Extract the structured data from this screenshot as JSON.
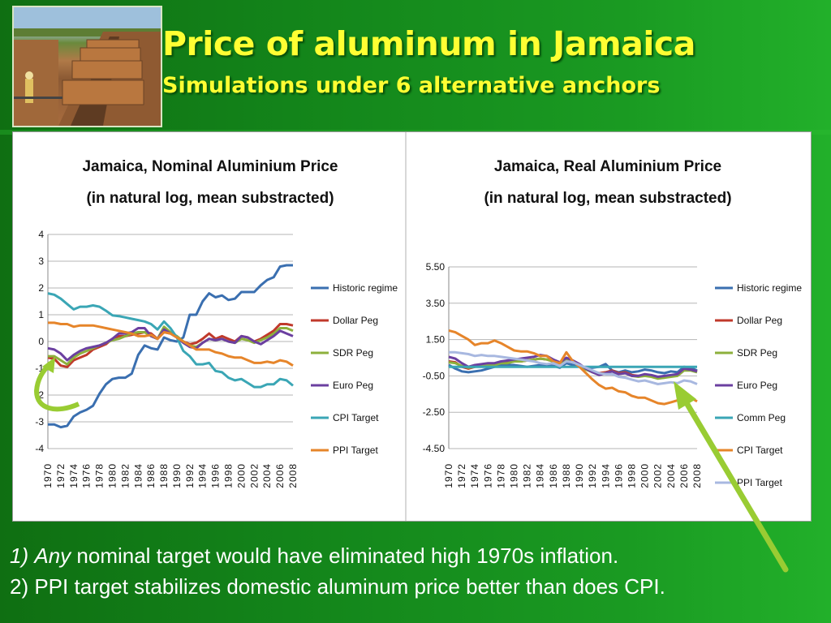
{
  "slide": {
    "title": "Price of aluminum in Jamaica",
    "subtitle": "Simulations under 6 alternative anchors",
    "note1_number": "1)",
    "note1_emph": "Any",
    "note1_text": "nominal target would have eliminated high 1970s inflation.",
    "note2_text": "2) PPI target stabilizes domestic aluminum price better than does CPI.",
    "title_color": "#ffff33",
    "arrow_color": "#99cc33"
  },
  "chart_data": [
    {
      "type": "line",
      "title_line1": "Jamaica, Nominal Aluminium Price",
      "title_line2": "(in natural log, mean substracted)",
      "ylim": [
        -4,
        4
      ],
      "yticks": [
        4,
        3,
        2,
        1,
        0,
        -1,
        -2,
        -3,
        -4
      ],
      "ytick_labels": [
        "4",
        "3",
        "2",
        "1",
        "0",
        "-1",
        "-2",
        "-3",
        "-4"
      ],
      "x": [
        1970,
        1971,
        1972,
        1973,
        1974,
        1975,
        1976,
        1977,
        1978,
        1979,
        1980,
        1981,
        1982,
        1983,
        1984,
        1985,
        1986,
        1987,
        1988,
        1989,
        1990,
        1991,
        1992,
        1993,
        1994,
        1995,
        1996,
        1997,
        1998,
        1999,
        2000,
        2001,
        2002,
        2003,
        2004,
        2005,
        2006,
        2007,
        2008
      ],
      "xtick_labels": [
        "1970",
        "1972",
        "1974",
        "1976",
        "1978",
        "1980",
        "1982",
        "1984",
        "1986",
        "1988",
        "1990",
        "1992",
        "1994",
        "1996",
        "1998",
        "2000",
        "2002",
        "2004",
        "2006",
        "2008"
      ],
      "legend_position": "right",
      "series": [
        {
          "name": "Historic regime",
          "color": "#3a6fb0",
          "values": [
            -3.1,
            -3.1,
            -3.2,
            -3.15,
            -2.8,
            -2.65,
            -2.55,
            -2.4,
            -1.95,
            -1.6,
            -1.4,
            -1.35,
            -1.35,
            -1.2,
            -0.5,
            -0.15,
            -0.25,
            -0.3,
            0.15,
            0.05,
            0.0,
            0.15,
            1.0,
            1.0,
            1.5,
            1.8,
            1.65,
            1.72,
            1.55,
            1.6,
            1.85,
            1.85,
            1.85,
            2.1,
            2.3,
            2.4,
            2.8,
            2.85,
            2.85
          ]
        },
        {
          "name": "Dollar Peg",
          "color": "#c0392b",
          "values": [
            -0.6,
            -0.65,
            -0.9,
            -0.95,
            -0.7,
            -0.6,
            -0.5,
            -0.3,
            -0.2,
            -0.1,
            0.1,
            0.2,
            0.2,
            0.25,
            0.3,
            0.35,
            0.3,
            0.1,
            0.35,
            0.3,
            0.2,
            0.0,
            -0.1,
            -0.05,
            0.1,
            0.3,
            0.1,
            0.2,
            0.1,
            0.0,
            0.2,
            0.15,
            0.0,
            0.1,
            0.25,
            0.4,
            0.65,
            0.65,
            0.6
          ]
        },
        {
          "name": "SDR Peg",
          "color": "#8db03c",
          "values": [
            -0.55,
            -0.55,
            -0.7,
            -0.85,
            -0.6,
            -0.45,
            -0.35,
            -0.25,
            -0.15,
            -0.05,
            0.05,
            0.1,
            0.2,
            0.3,
            0.35,
            0.35,
            0.2,
            0.1,
            0.55,
            0.35,
            0.2,
            0.0,
            -0.15,
            -0.2,
            -0.05,
            0.1,
            0.05,
            0.1,
            0.0,
            -0.05,
            0.1,
            0.05,
            -0.05,
            0.05,
            0.15,
            0.3,
            0.5,
            0.5,
            0.4
          ]
        },
        {
          "name": "Euro Peg",
          "color": "#6b3fa0",
          "values": [
            -0.25,
            -0.3,
            -0.45,
            -0.7,
            -0.5,
            -0.35,
            -0.25,
            -0.2,
            -0.15,
            -0.05,
            0.1,
            0.3,
            0.3,
            0.35,
            0.5,
            0.5,
            0.2,
            0.1,
            0.45,
            0.3,
            0.15,
            -0.05,
            -0.2,
            -0.25,
            -0.05,
            0.1,
            0.05,
            0.1,
            0.0,
            -0.05,
            0.2,
            0.15,
            0.0,
            -0.1,
            0.05,
            0.2,
            0.4,
            0.3,
            0.2
          ]
        },
        {
          "name": "CPI Target",
          "color": "#3aa6b5",
          "values": [
            1.8,
            1.75,
            1.6,
            1.4,
            1.2,
            1.3,
            1.3,
            1.35,
            1.3,
            1.15,
            0.98,
            0.95,
            0.9,
            0.85,
            0.8,
            0.75,
            0.65,
            0.45,
            0.75,
            0.5,
            0.15,
            -0.35,
            -0.55,
            -0.85,
            -0.85,
            -0.8,
            -1.1,
            -1.15,
            -1.35,
            -1.45,
            -1.4,
            -1.55,
            -1.7,
            -1.7,
            -1.6,
            -1.6,
            -1.4,
            -1.45,
            -1.65
          ]
        },
        {
          "name": "PPI Target",
          "color": "#e6852a",
          "values": [
            0.7,
            0.7,
            0.65,
            0.65,
            0.55,
            0.6,
            0.6,
            0.6,
            0.55,
            0.5,
            0.45,
            0.4,
            0.35,
            0.3,
            0.2,
            0.2,
            0.25,
            0.1,
            0.35,
            0.3,
            0.15,
            0.0,
            -0.15,
            -0.3,
            -0.3,
            -0.3,
            -0.4,
            -0.45,
            -0.55,
            -0.6,
            -0.6,
            -0.7,
            -0.8,
            -0.8,
            -0.75,
            -0.8,
            -0.7,
            -0.75,
            -0.9
          ]
        }
      ]
    },
    {
      "type": "line",
      "title_line1": "Jamaica, Real Aluminium Price",
      "title_line2": "(in natural log, mean substracted)",
      "ylim": [
        -4.5,
        5.5
      ],
      "yticks": [
        5.5,
        3.5,
        1.5,
        -0.5,
        -2.5,
        -4.5
      ],
      "ytick_labels": [
        "5.50",
        "3.50",
        "1.50",
        "-0.50",
        "-2.50",
        "-4.50"
      ],
      "x": [
        1970,
        1971,
        1972,
        1973,
        1974,
        1975,
        1976,
        1977,
        1978,
        1979,
        1980,
        1981,
        1982,
        1983,
        1984,
        1985,
        1986,
        1987,
        1988,
        1989,
        1990,
        1991,
        1992,
        1993,
        1994,
        1995,
        1996,
        1997,
        1998,
        1999,
        2000,
        2001,
        2002,
        2003,
        2004,
        2005,
        2006,
        2007,
        2008
      ],
      "xtick_labels": [
        "1970",
        "1972",
        "1974",
        "1976",
        "1978",
        "1980",
        "1982",
        "1984",
        "1986",
        "1988",
        "1990",
        "1992",
        "1994",
        "1996",
        "1998",
        "2000",
        "2002",
        "2004",
        "2006",
        "2008"
      ],
      "legend_position": "right",
      "series": [
        {
          "name": "Historic regime",
          "color": "#3a6fb0",
          "values": [
            0.1,
            -0.1,
            -0.25,
            -0.3,
            -0.25,
            -0.2,
            -0.1,
            0.0,
            0.1,
            0.1,
            0.1,
            0.05,
            0.0,
            0.05,
            0.1,
            0.1,
            0.05,
            -0.05,
            0.2,
            0.1,
            0.05,
            -0.05,
            -0.05,
            0.0,
            0.15,
            -0.2,
            -0.3,
            -0.2,
            -0.3,
            -0.25,
            -0.15,
            -0.2,
            -0.3,
            -0.35,
            -0.25,
            -0.3,
            0.0,
            -0.05,
            -0.2
          ]
        },
        {
          "name": "Dollar Peg",
          "color": "#c0392b",
          "values": [
            0.3,
            0.25,
            0.0,
            -0.1,
            0.0,
            0.05,
            0.1,
            0.15,
            0.25,
            0.25,
            0.3,
            0.3,
            0.35,
            0.4,
            0.45,
            0.4,
            0.3,
            0.2,
            0.4,
            0.3,
            0.1,
            -0.1,
            -0.25,
            -0.35,
            -0.3,
            -0.2,
            -0.35,
            -0.3,
            -0.45,
            -0.5,
            -0.45,
            -0.5,
            -0.6,
            -0.6,
            -0.5,
            -0.45,
            -0.15,
            -0.15,
            -0.25
          ]
        },
        {
          "name": "SDR Peg",
          "color": "#8db03c",
          "values": [
            0.25,
            0.2,
            0.05,
            -0.05,
            0.0,
            0.05,
            0.1,
            0.1,
            0.2,
            0.2,
            0.3,
            0.3,
            0.35,
            0.4,
            0.45,
            0.4,
            0.3,
            0.2,
            0.45,
            0.3,
            0.1,
            -0.15,
            -0.3,
            -0.4,
            -0.35,
            -0.25,
            -0.4,
            -0.35,
            -0.5,
            -0.55,
            -0.5,
            -0.55,
            -0.65,
            -0.6,
            -0.55,
            -0.5,
            -0.2,
            -0.2,
            -0.3
          ]
        },
        {
          "name": "Euro Peg",
          "color": "#6b3fa0",
          "values": [
            0.55,
            0.45,
            0.2,
            0.0,
            0.1,
            0.15,
            0.2,
            0.2,
            0.3,
            0.35,
            0.4,
            0.45,
            0.5,
            0.55,
            0.65,
            0.6,
            0.4,
            0.25,
            0.5,
            0.35,
            0.15,
            -0.1,
            -0.3,
            -0.45,
            -0.35,
            -0.25,
            -0.4,
            -0.35,
            -0.5,
            -0.5,
            -0.4,
            -0.45,
            -0.55,
            -0.5,
            -0.45,
            -0.4,
            -0.1,
            -0.15,
            -0.25
          ]
        },
        {
          "name": "Comm Peg",
          "color": "#3aa6b5",
          "values": [
            0.0,
            0.0,
            0.0,
            0.0,
            0.0,
            0.0,
            0.0,
            0.0,
            0.0,
            0.0,
            0.0,
            0.0,
            0.0,
            0.0,
            0.0,
            0.0,
            0.0,
            0.0,
            0.0,
            0.0,
            0.0,
            0.0,
            0.0,
            0.0,
            0.0,
            0.0,
            0.0,
            0.0,
            0.0,
            0.0,
            0.0,
            0.0,
            0.0,
            0.0,
            0.0,
            0.0,
            0.0,
            0.0,
            0.0
          ]
        },
        {
          "name": "CPI Target",
          "color": "#e6852a",
          "values": [
            2.0,
            1.9,
            1.7,
            1.5,
            1.2,
            1.3,
            1.3,
            1.45,
            1.3,
            1.1,
            0.9,
            0.85,
            0.85,
            0.75,
            0.6,
            0.6,
            0.3,
            0.2,
            0.8,
            0.3,
            0.0,
            -0.35,
            -0.7,
            -1.0,
            -1.2,
            -1.15,
            -1.35,
            -1.4,
            -1.6,
            -1.7,
            -1.7,
            -1.85,
            -2.0,
            -2.05,
            -1.95,
            -1.85,
            -1.6,
            -1.7,
            -1.9
          ]
        },
        {
          "name": "PPI Target",
          "color": "#a8b8e0",
          "values": [
            0.8,
            0.8,
            0.75,
            0.7,
            0.6,
            0.65,
            0.6,
            0.6,
            0.55,
            0.5,
            0.45,
            0.4,
            0.35,
            0.3,
            0.2,
            0.15,
            0.2,
            0.05,
            0.3,
            0.25,
            0.1,
            -0.05,
            -0.2,
            -0.35,
            -0.4,
            -0.4,
            -0.55,
            -0.6,
            -0.7,
            -0.8,
            -0.75,
            -0.85,
            -0.95,
            -0.9,
            -0.85,
            -0.9,
            -0.75,
            -0.8,
            -0.95
          ]
        }
      ]
    }
  ]
}
